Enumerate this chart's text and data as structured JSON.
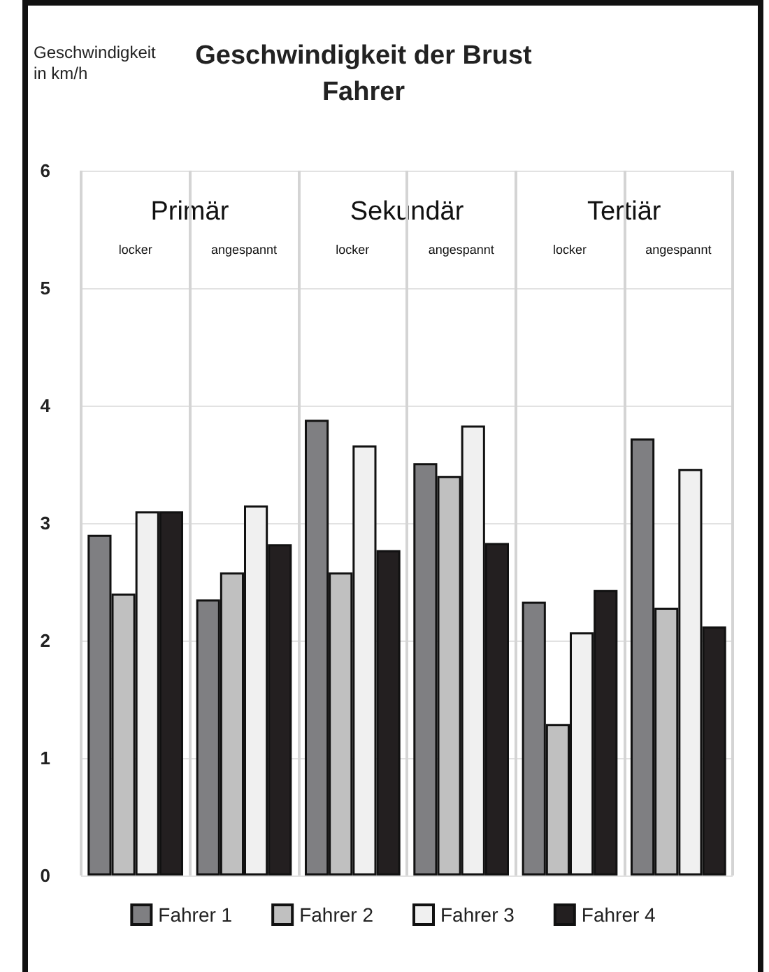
{
  "chart_data": {
    "type": "bar",
    "title": "Geschwindigkeit der Brust\nFahrer",
    "ylabel": "Geschwindigkeit\nin km/h",
    "categories": [
      "locker",
      "angespannt",
      "locker",
      "angespannt",
      "locker",
      "angespannt"
    ],
    "annotations": [
      "Primär",
      "Sekundär",
      "Tertiär"
    ],
    "series": [
      {
        "name": "Fahrer 1",
        "color": "#7f7f82",
        "values": [
          2.9,
          2.35,
          3.88,
          3.51,
          2.33,
          3.72
        ]
      },
      {
        "name": "Fahrer 2",
        "color": "#c0c0c0",
        "values": [
          2.4,
          2.58,
          2.58,
          3.4,
          1.29,
          2.28
        ]
      },
      {
        "name": "Fahrer 3",
        "color": "#f0f0f0",
        "values": [
          3.1,
          3.15,
          3.66,
          3.83,
          2.07,
          3.46
        ]
      },
      {
        "name": "Fahrer 4",
        "color": "#231f20",
        "values": [
          3.1,
          2.82,
          2.77,
          2.83,
          2.43,
          2.12
        ]
      }
    ],
    "ylim": [
      0,
      6
    ],
    "yticks": [
      0,
      1,
      2,
      3,
      4,
      5,
      6
    ],
    "grid": true,
    "legend": "bottom"
  }
}
